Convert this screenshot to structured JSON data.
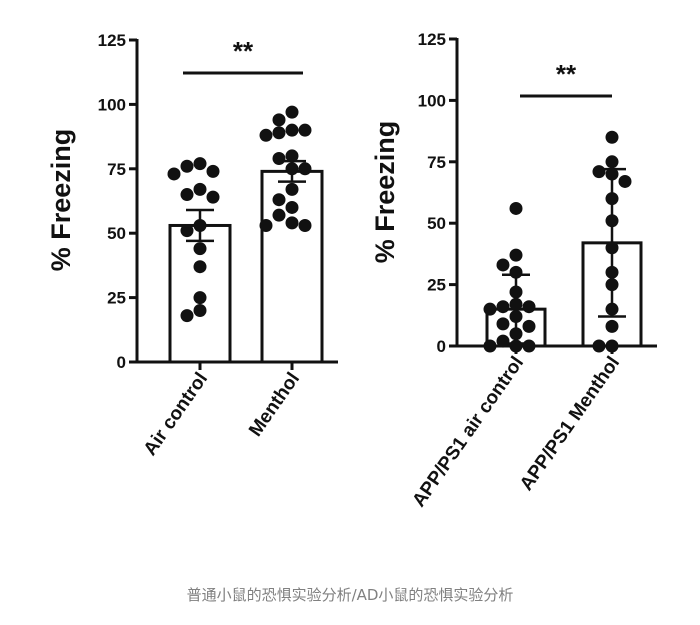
{
  "chart_data": [
    {
      "type": "bar",
      "ylabel": "% Freezing",
      "ylim": [
        0,
        125
      ],
      "yticks": [
        0,
        25,
        50,
        75,
        100,
        125
      ],
      "categories": [
        "Air control",
        "Menthol"
      ],
      "means": [
        53,
        74
      ],
      "sem": [
        6,
        4
      ],
      "points": [
        [
          77,
          73,
          76,
          74,
          67,
          65,
          64,
          53,
          51,
          44,
          37,
          25,
          18,
          20
        ],
        [
          97,
          94,
          90,
          89,
          90,
          88,
          79,
          80,
          75,
          75,
          67,
          63,
          60,
          57,
          53,
          54,
          53
        ]
      ],
      "significance": "**",
      "grid": false
    },
    {
      "type": "bar",
      "ylabel": "% Freezing",
      "ylim": [
        0,
        125
      ],
      "yticks": [
        0,
        25,
        50,
        75,
        100,
        125
      ],
      "categories": [
        "APP/PS1 air control",
        "APP/PS1 Menthol"
      ],
      "means": [
        15,
        42
      ],
      "sd": [
        14,
        30
      ],
      "points": [
        [
          56,
          37,
          33,
          30,
          22,
          17,
          16,
          16,
          15,
          12,
          9,
          8,
          5,
          2,
          0,
          0,
          0
        ],
        [
          85,
          75,
          71,
          70,
          67,
          60,
          51,
          40,
          30,
          25,
          15,
          8,
          0,
          0
        ]
      ],
      "significance": "**",
      "grid": false
    }
  ],
  "caption": "普通小鼠的恐惧实验分析/AD小鼠的恐惧实验分析"
}
